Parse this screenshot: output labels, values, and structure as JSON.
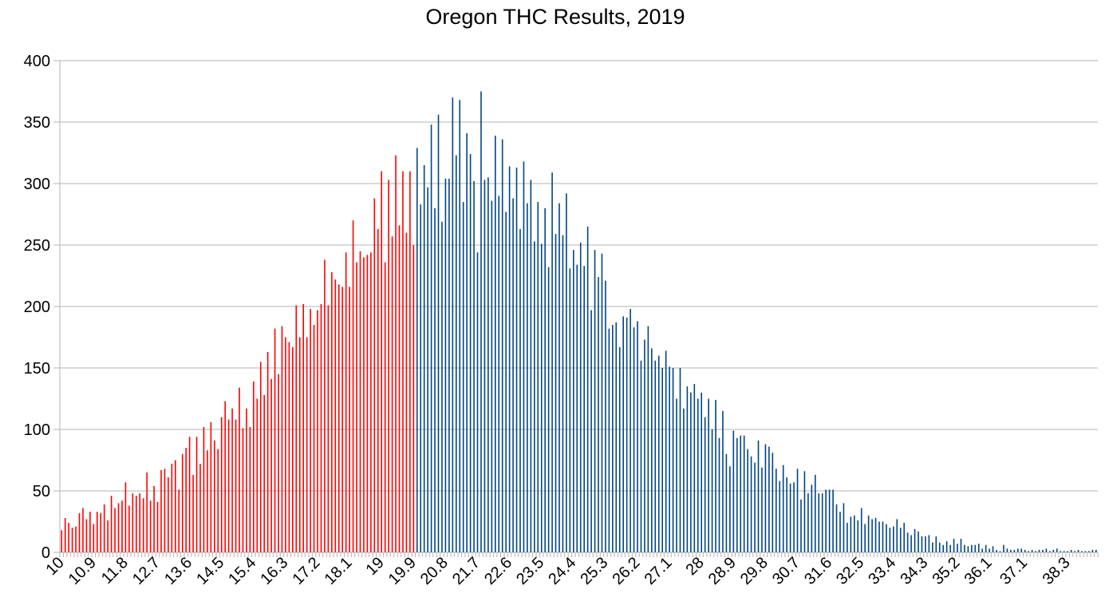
{
  "chart_data": {
    "type": "bar",
    "title": "Oregon THC Results, 2019",
    "xlabel": "",
    "ylabel": "",
    "ylim": [
      0,
      400
    ],
    "y_ticks": [
      "0",
      "50",
      "100",
      "150",
      "200",
      "250",
      "300",
      "350",
      "400"
    ],
    "x_start": 10.0,
    "x_step": 0.1,
    "x_tick_labels": [
      "10",
      "10.9",
      "11.8",
      "12.7",
      "13.6",
      "14.5",
      "15.4",
      "16.3",
      "17.2",
      "18.1",
      "19",
      "19.9",
      "20.8",
      "21.7",
      "22.6",
      "23.5",
      "24.4",
      "25.3",
      "26.2",
      "27.1",
      "28",
      "28.9",
      "29.8",
      "30.7",
      "31.6",
      "32.5",
      "33.4",
      "34.3",
      "35.2",
      "36.1",
      "37.1",
      "38.3"
    ],
    "highlight_threshold": 20.0,
    "grid": true,
    "legend": "none",
    "colors": {
      "below": "#ff0000",
      "above": "#004586",
      "grid": "#b3b3b3",
      "axis": "#b3b3b3"
    },
    "values": [
      18,
      28,
      24,
      20,
      21,
      32,
      36,
      27,
      33,
      23,
      33,
      32,
      39,
      26,
      46,
      36,
      40,
      42,
      57,
      38,
      48,
      46,
      48,
      44,
      65,
      42,
      54,
      41,
      67,
      68,
      61,
      72,
      75,
      51,
      80,
      85,
      94,
      63,
      94,
      72,
      102,
      83,
      106,
      91,
      84,
      110,
      123,
      108,
      117,
      108,
      134,
      101,
      117,
      102,
      139,
      125,
      155,
      128,
      163,
      141,
      182,
      145,
      184,
      175,
      171,
      167,
      201,
      175,
      202,
      175,
      198,
      185,
      197,
      202,
      238,
      201,
      228,
      222,
      218,
      216,
      244,
      216,
      270,
      236,
      245,
      240,
      242,
      244,
      288,
      263,
      310,
      236,
      303,
      257,
      323,
      266,
      310,
      260,
      310,
      250,
      329,
      283,
      315,
      297,
      348,
      280,
      356,
      269,
      304,
      304,
      370,
      323,
      368,
      285,
      341,
      324,
      302,
      244,
      375,
      303,
      305,
      286,
      339,
      290,
      336,
      277,
      314,
      288,
      313,
      263,
      318,
      284,
      303,
      253,
      285,
      251,
      280,
      232,
      309,
      259,
      284,
      258,
      292,
      231,
      246,
      234,
      252,
      233,
      265,
      197,
      246,
      224,
      243,
      221,
      182,
      185,
      187,
      167,
      192,
      191,
      198,
      183,
      188,
      156,
      173,
      184,
      166,
      156,
      160,
      150,
      164,
      151,
      150,
      125,
      150,
      117,
      135,
      130,
      137,
      125,
      130,
      110,
      125,
      100,
      124,
      93,
      115,
      80,
      70,
      99,
      93,
      95,
      95,
      84,
      78,
      73,
      91,
      69,
      88,
      86,
      81,
      68,
      58,
      71,
      61,
      56,
      57,
      68,
      43,
      66,
      48,
      55,
      63,
      48,
      48,
      51,
      51,
      51,
      39,
      33,
      40,
      24,
      29,
      30,
      26,
      36,
      23,
      30,
      27,
      28,
      25,
      25,
      23,
      20,
      21,
      27,
      20,
      24,
      16,
      14,
      19,
      17,
      13,
      13,
      14,
      8,
      13,
      8,
      6,
      9,
      6,
      11,
      7,
      11,
      6,
      5,
      6,
      6,
      7,
      3,
      6,
      3,
      5,
      2,
      1,
      6,
      3,
      2,
      2,
      3,
      3,
      2,
      1,
      2,
      1,
      2,
      2,
      3,
      1,
      2,
      3,
      1,
      1,
      1,
      2,
      1,
      2,
      1,
      1,
      1,
      2,
      2
    ]
  }
}
